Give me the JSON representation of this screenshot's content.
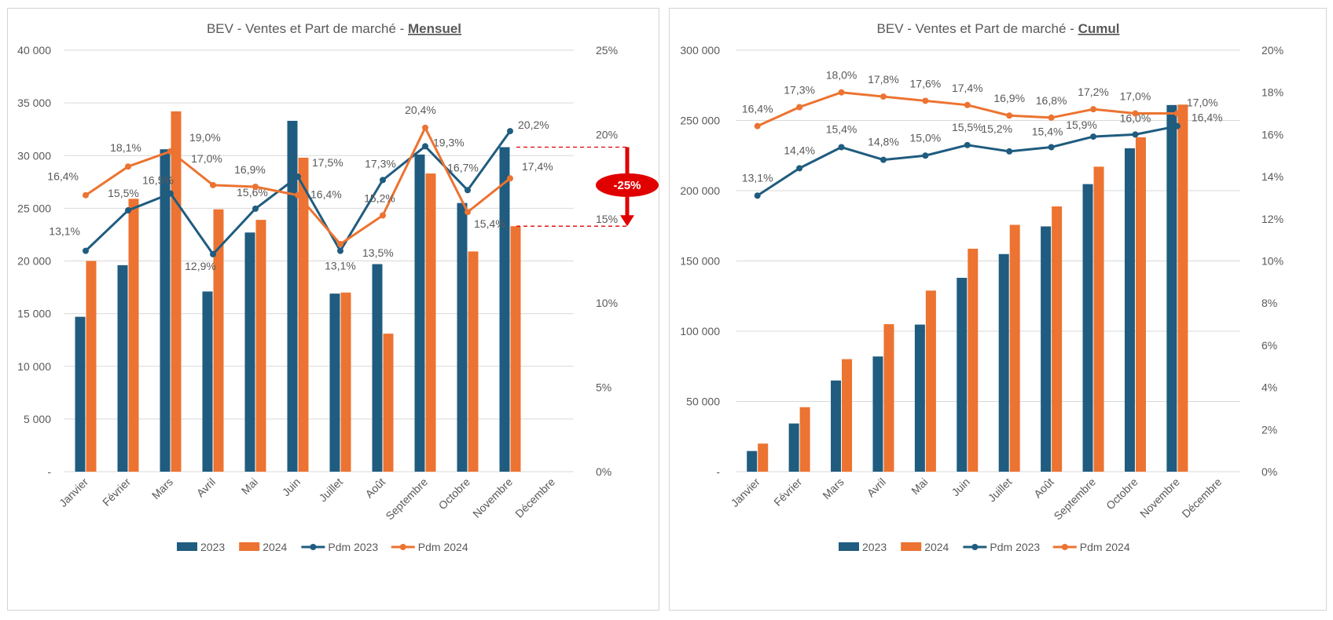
{
  "colors": {
    "y2023": "#1F5C7F",
    "y2024": "#EC7331",
    "grid": "#d9d9d9",
    "text": "#595959",
    "alert": "#E00000"
  },
  "legend": {
    "s2023": "2023",
    "s2024": "2024",
    "pdm2023": "Pdm 2023",
    "pdm2024": "Pdm 2024"
  },
  "chart_data": [
    {
      "id": "mensuel",
      "type": "bar",
      "title_prefix": "BEV - Ventes et Part de marché - ",
      "title_strong": "Mensuel",
      "categories": [
        "Janvier",
        "Février",
        "Mars",
        "Avril",
        "Mai",
        "Juin",
        "Juillet",
        "Août",
        "Septembre",
        "Octobre",
        "Novembre",
        "Décembre"
      ],
      "series": [
        {
          "name": "2023",
          "values": [
            14700,
            19600,
            30600,
            17100,
            22700,
            33300,
            16900,
            19700,
            30100,
            25500,
            30800,
            null
          ]
        },
        {
          "name": "2024",
          "values": [
            20000,
            25900,
            34200,
            24900,
            23900,
            29800,
            17000,
            13100,
            28300,
            20900,
            23300,
            null
          ]
        }
      ],
      "lines": [
        {
          "name": "Pdm 2023",
          "values": [
            13.1,
            15.5,
            16.5,
            12.9,
            15.6,
            17.5,
            13.1,
            17.3,
            19.3,
            16.7,
            20.2,
            null
          ],
          "labels": [
            "13,1%",
            "15,5%",
            "16,5%",
            "12,9%",
            "15,6%",
            "17,5%",
            "13,1%",
            "17,3%",
            "19,3%",
            "16,7%",
            "20,2%",
            ""
          ]
        },
        {
          "name": "Pdm 2024",
          "values": [
            16.4,
            18.1,
            19.0,
            17.0,
            16.9,
            16.4,
            13.5,
            15.2,
            20.4,
            15.4,
            17.4,
            null
          ],
          "labels": [
            "16,4%",
            "18,1%",
            "19,0%",
            "17,0%",
            "16,9%",
            "16,4%",
            "13,5%",
            "15,2%",
            "20,4%",
            "15,4%",
            "17,4%",
            ""
          ]
        }
      ],
      "y_left": {
        "min": 0,
        "max": 40000,
        "ticks": [
          "-",
          "5 000",
          "10 000",
          "15 000",
          "20 000",
          "25 000",
          "30 000",
          "35 000",
          "40 000"
        ]
      },
      "y_right": {
        "min": 0,
        "max": 25,
        "ticks": [
          "0%",
          "5%",
          "10%",
          "15%",
          "20%",
          "25%"
        ]
      },
      "annotation": {
        "label": "-25%",
        "category": "Novembre",
        "from_value": 30800,
        "to_value": 23300
      }
    },
    {
      "id": "cumul",
      "type": "bar",
      "title_prefix": "BEV - Ventes et Part de marché - ",
      "title_strong": "Cumul",
      "categories": [
        "Janvier",
        "Février",
        "Mars",
        "Avril",
        "Mai",
        "Juin",
        "Juillet",
        "Août",
        "Septembre",
        "Octobre",
        "Novembre",
        "Décembre"
      ],
      "series": [
        {
          "name": "2023",
          "values": [
            14700,
            34300,
            64900,
            82000,
            104700,
            138000,
            154900,
            174600,
            204700,
            230200,
            261000,
            null
          ]
        },
        {
          "name": "2024",
          "values": [
            20000,
            45900,
            80100,
            105000,
            128900,
            158700,
            175700,
            188800,
            217100,
            238000,
            261300,
            null
          ]
        }
      ],
      "lines": [
        {
          "name": "Pdm 2023",
          "values": [
            13.1,
            14.4,
            15.4,
            14.8,
            15.0,
            15.5,
            15.2,
            15.4,
            15.9,
            16.0,
            16.4,
            null
          ],
          "labels": [
            "13,1%",
            "14,4%",
            "15,4%",
            "14,8%",
            "15,0%",
            "15,5%",
            "15,2%",
            "15,4%",
            "15,9%",
            "16,0%",
            "16,4%",
            ""
          ]
        },
        {
          "name": "Pdm 2024",
          "values": [
            16.4,
            17.3,
            18.0,
            17.8,
            17.6,
            17.4,
            16.9,
            16.8,
            17.2,
            17.0,
            17.0,
            null
          ],
          "labels": [
            "16,4%",
            "17,3%",
            "18,0%",
            "17,8%",
            "17,6%",
            "17,4%",
            "16,9%",
            "16,8%",
            "17,2%",
            "17,0%",
            "17,0%",
            ""
          ]
        }
      ],
      "y_left": {
        "min": 0,
        "max": 300000,
        "ticks": [
          "-",
          "50 000",
          "100 000",
          "150 000",
          "200 000",
          "250 000",
          "300 000"
        ]
      },
      "y_right": {
        "min": 0,
        "max": 20,
        "ticks": [
          "0%",
          "2%",
          "4%",
          "6%",
          "8%",
          "10%",
          "12%",
          "14%",
          "16%",
          "18%",
          "20%"
        ]
      }
    }
  ]
}
